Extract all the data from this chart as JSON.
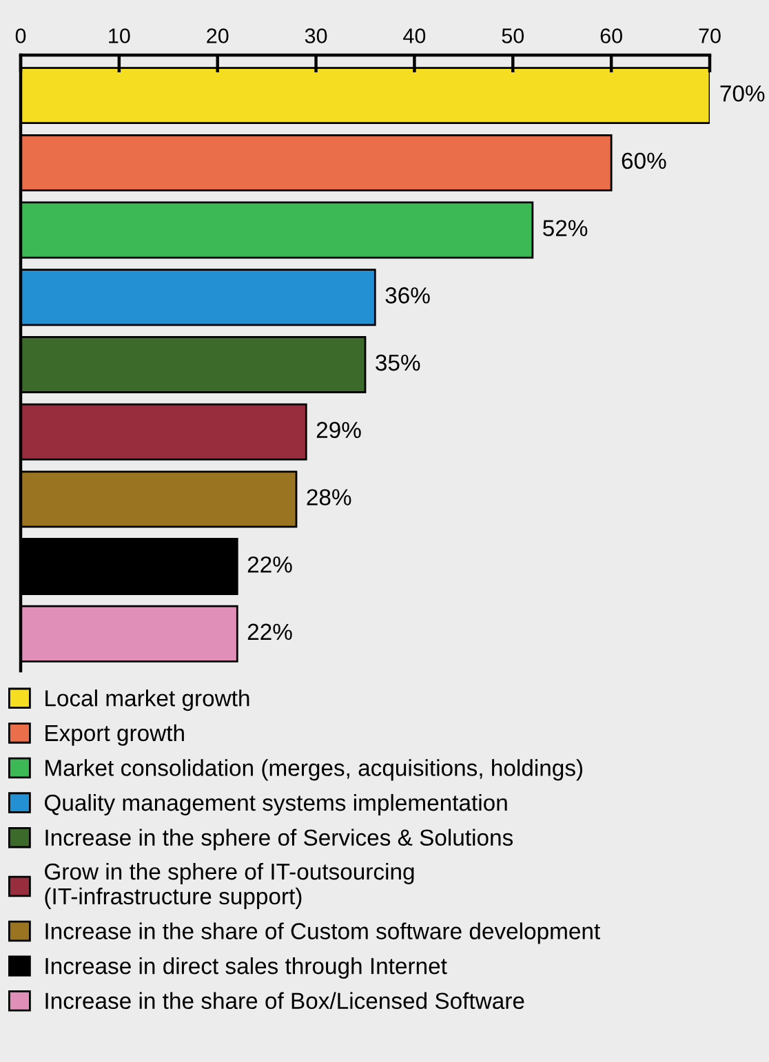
{
  "chart_data": {
    "type": "bar",
    "orientation": "horizontal",
    "categories": [
      null,
      null,
      null,
      null,
      null,
      null,
      null,
      null,
      null
    ],
    "series": [
      {
        "name": "Local market growth",
        "color": "#f5de22",
        "values": [
          70,
          null,
          null,
          null,
          null,
          null,
          null,
          null,
          null
        ],
        "value_labels": [
          "70%",
          null,
          null,
          null,
          null,
          null,
          null,
          null,
          null
        ]
      },
      {
        "name": "Export growth",
        "color": "#ea6e49",
        "values": [
          null,
          60,
          null,
          null,
          null,
          null,
          null,
          null,
          null
        ],
        "value_labels": [
          null,
          "60%",
          null,
          null,
          null,
          null,
          null,
          null,
          null
        ]
      },
      {
        "name": "Market consolidation (merges, acquisitions, holdings)",
        "color": "#3cb954",
        "values": [
          null,
          null,
          52,
          null,
          null,
          null,
          null,
          null,
          null
        ],
        "value_labels": [
          null,
          null,
          "52%",
          null,
          null,
          null,
          null,
          null,
          null
        ]
      },
      {
        "name": "Quality management systems implementation",
        "color": "#2290d3",
        "values": [
          null,
          null,
          null,
          36,
          null,
          null,
          null,
          null,
          null
        ],
        "value_labels": [
          null,
          null,
          null,
          "36%",
          null,
          null,
          null,
          null,
          null
        ]
      },
      {
        "name": "Increase in the sphere of Services & Solutions",
        "color": "#3b6a2a",
        "values": [
          null,
          null,
          null,
          null,
          35,
          null,
          null,
          null,
          null
        ],
        "value_labels": [
          null,
          null,
          null,
          null,
          "35%",
          null,
          null,
          null,
          null
        ]
      },
      {
        "name": "Grow in the sphere of IT-outsourcing\n(IT-infrastructure support)",
        "color": "#982e3d",
        "values": [
          null,
          null,
          null,
          null,
          null,
          29,
          null,
          null,
          null
        ],
        "value_labels": [
          null,
          null,
          null,
          null,
          null,
          "29%",
          null,
          null,
          null
        ]
      },
      {
        "name": "Increase in the share of Custom software development",
        "color": "#9b7421",
        "values": [
          null,
          null,
          null,
          null,
          null,
          null,
          28,
          null,
          null
        ],
        "value_labels": [
          null,
          null,
          null,
          null,
          null,
          null,
          "28%",
          null,
          null
        ]
      },
      {
        "name": "Increase in direct sales through Internet",
        "color": "#000000",
        "values": [
          null,
          null,
          null,
          null,
          null,
          null,
          null,
          22,
          null
        ],
        "value_labels": [
          null,
          null,
          null,
          null,
          null,
          null,
          null,
          "22%",
          null
        ]
      },
      {
        "name": "Increase in the share of Box/Licensed Software",
        "color": "#e08fb8",
        "values": [
          null,
          null,
          null,
          null,
          null,
          null,
          null,
          null,
          22
        ],
        "value_labels": [
          null,
          null,
          null,
          null,
          null,
          null,
          null,
          null,
          "22%"
        ]
      }
    ],
    "xlim": [
      0,
      70
    ],
    "xticks": [
      0,
      10,
      20,
      30,
      40,
      50,
      60,
      70
    ],
    "legend": "bottom left",
    "grid": false
  }
}
